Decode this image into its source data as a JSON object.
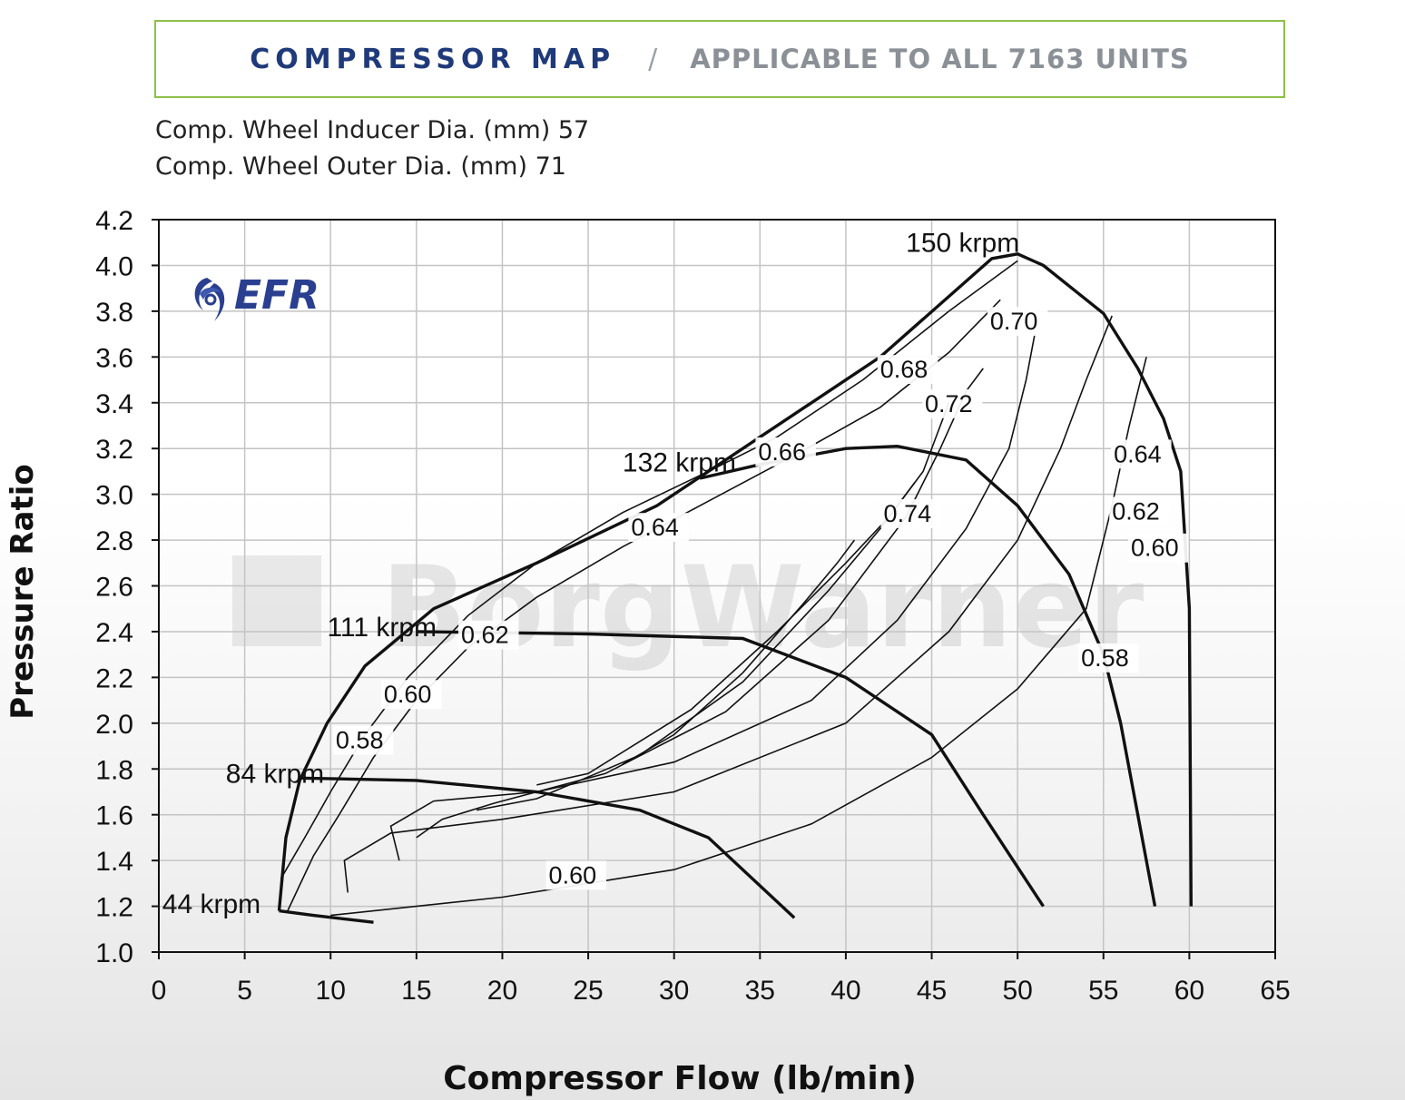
{
  "header": {
    "title": "COMPRESSOR MAP",
    "separator": "/",
    "subtitle": "APPLICABLE TO ALL 7163 UNITS",
    "accent_color": "#8dc04a",
    "title_color": "#1f3a7a"
  },
  "specs": [
    "Comp. Wheel Inducer Dia. (mm) 57",
    "Comp. Wheel Outer Dia. (mm) 71"
  ],
  "logos": {
    "brand": "EFR",
    "watermark": "BorgWarner"
  },
  "chart_data": {
    "type": "line",
    "title": "",
    "xlabel": "Compressor Flow (lb/min)",
    "ylabel": "Pressure Ratio",
    "xlim": [
      0,
      65
    ],
    "ylim": [
      1.0,
      4.2
    ],
    "x_ticks": [
      0,
      5,
      10,
      15,
      20,
      25,
      30,
      35,
      40,
      45,
      50,
      55,
      60,
      65
    ],
    "y_ticks": [
      1.0,
      1.2,
      1.4,
      1.6,
      1.8,
      2.0,
      2.2,
      2.4,
      2.6,
      2.8,
      3.0,
      3.2,
      3.4,
      3.6,
      3.8,
      4.0,
      4.2
    ],
    "grid": true,
    "surge_line": [
      [
        7.0,
        1.18
      ],
      [
        7.4,
        1.5
      ],
      [
        8.2,
        1.75
      ],
      [
        9.8,
        2.0
      ],
      [
        12.0,
        2.25
      ],
      [
        16.0,
        2.5
      ],
      [
        22.0,
        2.7
      ],
      [
        29.0,
        2.95
      ],
      [
        35.0,
        3.25
      ],
      [
        42.0,
        3.6
      ],
      [
        48.5,
        4.03
      ],
      [
        50.0,
        4.05
      ],
      [
        51.5,
        4.0
      ],
      [
        53.5,
        3.88
      ],
      [
        55.0,
        3.79
      ],
      [
        57.0,
        3.55
      ],
      [
        58.5,
        3.33
      ],
      [
        59.5,
        3.1
      ],
      [
        60.0,
        2.5
      ],
      [
        60.1,
        1.2
      ]
    ],
    "speed_lines": [
      {
        "name": "44 krpm",
        "points": [
          [
            7.0,
            1.18
          ],
          [
            9.0,
            1.16
          ],
          [
            12.5,
            1.13
          ]
        ]
      },
      {
        "name": "84 krpm",
        "points": [
          [
            8.2,
            1.76
          ],
          [
            15.0,
            1.75
          ],
          [
            22.0,
            1.7
          ],
          [
            28.0,
            1.62
          ],
          [
            32.0,
            1.5
          ],
          [
            37.0,
            1.15
          ]
        ]
      },
      {
        "name": "111 krpm",
        "points": [
          [
            15.0,
            2.4
          ],
          [
            25.0,
            2.39
          ],
          [
            34.0,
            2.37
          ],
          [
            40.0,
            2.2
          ],
          [
            45.0,
            1.95
          ],
          [
            48.0,
            1.6
          ],
          [
            51.5,
            1.2
          ]
        ]
      },
      {
        "name": "132 krpm",
        "points": [
          [
            31.5,
            3.07
          ],
          [
            35.0,
            3.13
          ],
          [
            40.0,
            3.2
          ],
          [
            43.0,
            3.21
          ],
          [
            47.0,
            3.15
          ],
          [
            50.0,
            2.95
          ],
          [
            53.0,
            2.65
          ],
          [
            55.0,
            2.3
          ],
          [
            56.0,
            2.0
          ],
          [
            57.0,
            1.6
          ],
          [
            58.0,
            1.2
          ]
        ]
      },
      {
        "name": "150 krpm",
        "points": []
      }
    ],
    "efficiency_labels": [
      "0.58",
      "0.60",
      "0.62",
      "0.64",
      "0.66",
      "0.68",
      "0.70",
      "0.72",
      "0.74"
    ],
    "efficiency_islands": [
      {
        "label": "0.58",
        "points": [
          [
            7.1,
            1.32
          ],
          [
            8.5,
            1.5
          ],
          [
            10.0,
            1.7
          ],
          [
            12.0,
            1.95
          ],
          [
            14.5,
            2.2
          ],
          [
            18.0,
            2.47
          ],
          [
            22.0,
            2.7
          ],
          [
            27.0,
            2.92
          ],
          [
            32.0,
            3.1
          ],
          [
            36.0,
            3.25
          ],
          [
            41.0,
            3.5
          ],
          [
            46.0,
            3.8
          ],
          [
            50.0,
            4.02
          ]
        ]
      },
      {
        "label": "0.60",
        "points": [
          [
            7.5,
            1.18
          ],
          [
            9.0,
            1.42
          ],
          [
            10.5,
            1.6
          ],
          [
            12.5,
            1.85
          ],
          [
            15.0,
            2.1
          ],
          [
            18.0,
            2.33
          ],
          [
            22.0,
            2.55
          ],
          [
            27.0,
            2.77
          ],
          [
            32.0,
            2.97
          ],
          [
            37.0,
            3.17
          ],
          [
            42.0,
            3.38
          ],
          [
            46.0,
            3.62
          ],
          [
            49.0,
            3.85
          ]
        ]
      },
      {
        "label": "0.62",
        "points": [
          [
            10.0,
            1.16
          ],
          [
            20.0,
            1.24
          ],
          [
            30.0,
            1.36
          ],
          [
            38.0,
            1.56
          ],
          [
            45.0,
            1.85
          ],
          [
            50.0,
            2.15
          ],
          [
            54.0,
            2.5
          ],
          [
            55.5,
            2.95
          ],
          [
            56.5,
            3.3
          ],
          [
            57.5,
            3.6
          ]
        ]
      },
      {
        "label": "0.64",
        "points": [
          [
            11.0,
            1.26
          ],
          [
            10.8,
            1.4
          ],
          [
            13.5,
            1.52
          ],
          [
            20.0,
            1.58
          ],
          [
            30.0,
            1.7
          ],
          [
            40.0,
            2.0
          ],
          [
            46.0,
            2.4
          ],
          [
            50.0,
            2.8
          ],
          [
            52.5,
            3.2
          ],
          [
            54.0,
            3.5
          ],
          [
            55.5,
            3.78
          ]
        ]
      },
      {
        "label": "0.66",
        "points": [
          [
            14.0,
            1.4
          ],
          [
            13.5,
            1.55
          ],
          [
            16.0,
            1.66
          ],
          [
            22.0,
            1.7
          ],
          [
            30.0,
            1.83
          ],
          [
            38.0,
            2.1
          ],
          [
            43.0,
            2.45
          ],
          [
            47.0,
            2.85
          ],
          [
            49.5,
            3.2
          ],
          [
            50.5,
            3.5
          ],
          [
            51.0,
            3.7
          ]
        ]
      },
      {
        "label": "0.68",
        "points": [
          [
            15.0,
            1.5
          ],
          [
            16.5,
            1.58
          ],
          [
            19.5,
            1.65
          ],
          [
            26.0,
            1.78
          ],
          [
            33.0,
            2.05
          ],
          [
            39.0,
            2.45
          ],
          [
            43.5,
            2.9
          ],
          [
            45.5,
            3.2
          ],
          [
            47.0,
            3.45
          ],
          [
            48.0,
            3.55
          ]
        ]
      },
      {
        "label": "0.70",
        "points": [
          [
            18.5,
            1.62
          ],
          [
            22.0,
            1.67
          ],
          [
            28.0,
            1.86
          ],
          [
            34.0,
            2.18
          ],
          [
            39.0,
            2.58
          ],
          [
            42.0,
            2.85
          ],
          [
            44.5,
            3.1
          ],
          [
            45.5,
            3.3
          ],
          [
            46.0,
            3.4
          ]
        ]
      },
      {
        "label": "0.72",
        "points": [
          [
            22.0,
            1.73
          ],
          [
            25.0,
            1.78
          ],
          [
            31.0,
            2.06
          ],
          [
            36.0,
            2.4
          ],
          [
            40.0,
            2.7
          ],
          [
            42.5,
            2.9
          ],
          [
            44.0,
            3.05
          ]
        ]
      },
      {
        "label": "0.74",
        "points": [
          [
            27.0,
            1.82
          ],
          [
            30.0,
            1.95
          ],
          [
            34.0,
            2.22
          ],
          [
            37.5,
            2.52
          ],
          [
            39.5,
            2.7
          ],
          [
            40.5,
            2.8
          ]
        ]
      }
    ],
    "annotations": [
      {
        "text": "150 krpm",
        "x": 43.5,
        "y": 4.06
      },
      {
        "text": "132 krpm",
        "x": 27.0,
        "y": 3.1
      },
      {
        "text": "111 krpm",
        "x": 9.8,
        "y": 2.38
      },
      {
        "text": "84 krpm",
        "x": 3.9,
        "y": 1.74
      },
      {
        "text": "44 krpm",
        "x": 0.2,
        "y": 1.17
      },
      {
        "text": "0.70",
        "x": 48.4,
        "y": 3.72
      },
      {
        "text": "0.68",
        "x": 42.0,
        "y": 3.51
      },
      {
        "text": "0.72",
        "x": 44.6,
        "y": 3.36
      },
      {
        "text": "0.66",
        "x": 34.9,
        "y": 3.15
      },
      {
        "text": "0.64",
        "x": 27.5,
        "y": 2.82
      },
      {
        "text": "0.74",
        "x": 42.2,
        "y": 2.88
      },
      {
        "text": "0.62",
        "x": 17.6,
        "y": 2.35
      },
      {
        "text": "0.60",
        "x": 13.1,
        "y": 2.09
      },
      {
        "text": "0.58",
        "x": 10.3,
        "y": 1.89
      },
      {
        "text": "0.60",
        "x": 22.7,
        "y": 1.3
      },
      {
        "text": "0.64",
        "x": 55.6,
        "y": 3.14
      },
      {
        "text": "0.62",
        "x": 55.5,
        "y": 2.89
      },
      {
        "text": "0.60",
        "x": 56.6,
        "y": 2.73
      },
      {
        "text": "0.58",
        "x": 53.7,
        "y": 2.25
      }
    ]
  }
}
